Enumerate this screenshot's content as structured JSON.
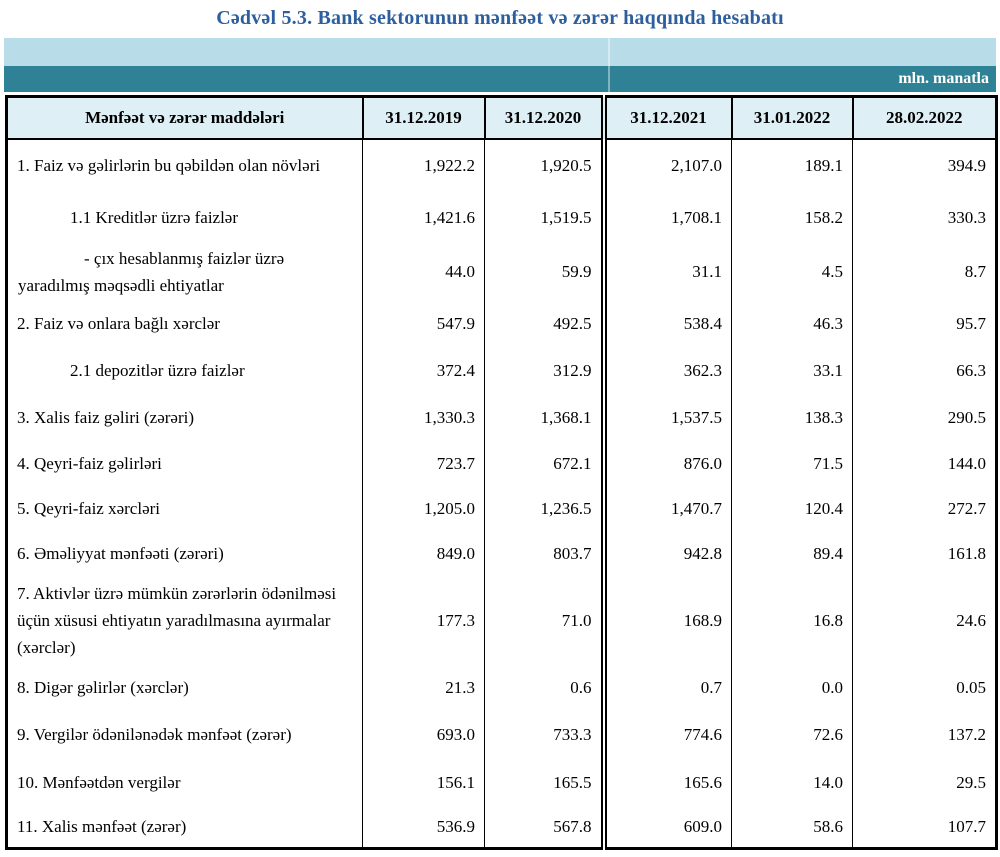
{
  "title": "Cədvəl 5.3. Bank sektorunun mənfəət və zərər haqqında hesabatı",
  "unit_label": "mln. manatla",
  "colors": {
    "title_blue": "#2d5f9e",
    "band_light_blue": "#b9dce9",
    "band_teal": "#2f8296",
    "header_cell_bg": "#def0f6",
    "border_black": "#000000"
  },
  "table": {
    "header": {
      "item_column": "Mənfəət və zərər maddələri",
      "date_columns": [
        "31.12.2019",
        "31.12.2020",
        "31.12.2021",
        "31.01.2022",
        "28.02.2022"
      ]
    },
    "rows": [
      {
        "label": "1. Faiz və gəlirlərin bu qəbildən olan növləri",
        "values": [
          "1,922.2",
          "1,920.5",
          "2,107.0",
          "189.1",
          "394.9"
        ]
      },
      {
        "label": "1.1 Kreditlər üzrə faizlər",
        "values": [
          "1,421.6",
          "1,519.5",
          "1,708.1",
          "158.2",
          "330.3"
        ]
      },
      {
        "label": "-  çıx hesablanmış faizlər üzrə yaradılmış məqsədli ehtiyatlar",
        "values": [
          "44.0",
          "59.9",
          "31.1",
          "4.5",
          "8.7"
        ]
      },
      {
        "label": "2. Faiz və onlara bağlı xərclər",
        "values": [
          "547.9",
          "492.5",
          "538.4",
          "46.3",
          "95.7"
        ]
      },
      {
        "label": "2.1 depozitlər üzrə faizlər",
        "values": [
          "372.4",
          "312.9",
          "362.3",
          "33.1",
          "66.3"
        ]
      },
      {
        "label": "3. Xalis faiz gəliri (zərəri)",
        "values": [
          "1,330.3",
          "1,368.1",
          "1,537.5",
          "138.3",
          "290.5"
        ]
      },
      {
        "label": "4. Qeyri-faiz gəlirləri",
        "values": [
          "723.7",
          "672.1",
          "876.0",
          "71.5",
          "144.0"
        ]
      },
      {
        "label": "5. Qeyri-faiz xərcləri",
        "values": [
          "1,205.0",
          "1,236.5",
          "1,470.7",
          "120.4",
          "272.7"
        ]
      },
      {
        "label": "6. Əməliyyat mənfəəti (zərəri)",
        "values": [
          "849.0",
          "803.7",
          "942.8",
          "89.4",
          "161.8"
        ]
      },
      {
        "label": "7. Aktivlər üzrə mümkün zərərlərin ödənilməsi üçün xüsusi ehtiyatın yaradılmasına ayırmalar (xərclər)",
        "values": [
          "177.3",
          "71.0",
          "168.9",
          "16.8",
          "24.6"
        ]
      },
      {
        "label": "8. Digər gəlirlər (xərclər)",
        "values": [
          "21.3",
          "0.6",
          "0.7",
          "0.0",
          "0.05"
        ]
      },
      {
        "label": "9. Vergilər ödənilənədək mənfəət (zərər)",
        "values": [
          "693.0",
          "733.3",
          "774.6",
          "72.6",
          "137.2"
        ]
      },
      {
        "label": "10. Mənfəətdən vergilər",
        "values": [
          "156.1",
          "165.5",
          "165.6",
          "14.0",
          "29.5"
        ]
      },
      {
        "label": "11. Xalis mənfəət (zərər)",
        "values": [
          "536.9",
          "567.8",
          "609.0",
          "58.6",
          "107.7"
        ]
      }
    ]
  }
}
